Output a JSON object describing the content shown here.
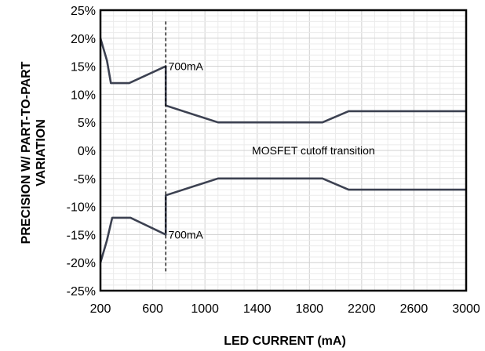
{
  "chart_data": {
    "type": "line",
    "title": "",
    "xlabel": "LED CURRENT (mA)",
    "ylabel_line1": "PRECISION W/ PART-TO-PART",
    "ylabel_line2": "VARIATION",
    "xlim": [
      200,
      3000
    ],
    "ylim": [
      -25,
      25
    ],
    "x_ticks": [
      200,
      600,
      1000,
      1400,
      1800,
      2200,
      2600,
      3000
    ],
    "x_tick_labels": [
      "200",
      "600",
      "1000",
      "1400",
      "1800",
      "2200",
      "2600",
      "3000"
    ],
    "y_ticks": [
      25,
      20,
      15,
      10,
      5,
      0,
      -5,
      -10,
      -15,
      -20,
      -25
    ],
    "y_tick_labels": [
      "25%",
      "20%",
      "15%",
      "10%",
      "5%",
      "0%",
      "-5%",
      "-10%",
      "-15%",
      "-20%",
      "-25%"
    ],
    "grid": true,
    "line_color": "#3c4151",
    "series": [
      {
        "points": [
          [
            200,
            20
          ],
          [
            250,
            16
          ],
          [
            280,
            12
          ],
          [
            420,
            12
          ],
          [
            700,
            15
          ],
          [
            700,
            8
          ],
          [
            1100,
            5
          ],
          [
            1900,
            5
          ],
          [
            2100,
            7
          ],
          [
            3000,
            7
          ]
        ]
      },
      {
        "points": [
          [
            200,
            -20
          ],
          [
            250,
            -16
          ],
          [
            290,
            -12
          ],
          [
            430,
            -12
          ],
          [
            700,
            -15
          ],
          [
            700,
            -8
          ],
          [
            1100,
            -5
          ],
          [
            1900,
            -5
          ],
          [
            2100,
            -7
          ],
          [
            3000,
            -7
          ]
        ]
      }
    ],
    "vline": {
      "x": 700,
      "y_from": 23,
      "y_to": -22
    },
    "annotations": [
      {
        "text": "700mA",
        "x": 720,
        "y": 15
      },
      {
        "text": "700mA",
        "x": 720,
        "y": -15
      },
      {
        "text": "MOSFET cutoff transition",
        "x": 1360,
        "y": 0
      }
    ]
  }
}
